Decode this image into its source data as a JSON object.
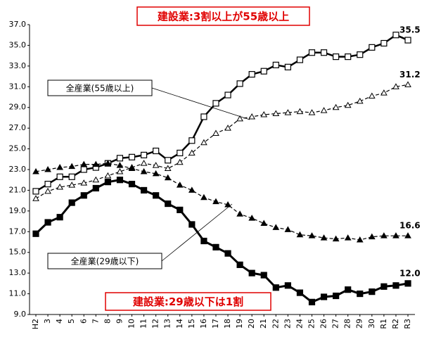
{
  "chart_data": {
    "type": "line",
    "categories": [
      "H2",
      "3",
      "4",
      "5",
      "6",
      "7",
      "8",
      "9",
      "10",
      "11",
      "12",
      "13",
      "14",
      "15",
      "16",
      "17",
      "18",
      "19",
      "20",
      "21",
      "22",
      "23",
      "24",
      "25",
      "26",
      "27",
      "28",
      "29",
      "30",
      "R1",
      "R2",
      "R3"
    ],
    "ylim": [
      9,
      37
    ],
    "yticks": [
      {
        "value": 9,
        "label": "9.0"
      },
      {
        "value": 11,
        "label": "11.0"
      },
      {
        "value": 13,
        "label": "13.0"
      },
      {
        "value": 15,
        "label": "15.0"
      },
      {
        "value": 17,
        "label": "17.0"
      },
      {
        "value": 19,
        "label": "19.0"
      },
      {
        "value": 21,
        "label": "21.0"
      },
      {
        "value": 23,
        "label": "23.0"
      },
      {
        "value": 25,
        "label": "25.0"
      },
      {
        "value": 27,
        "label": "27.0"
      },
      {
        "value": 29,
        "label": "29.0"
      },
      {
        "value": 31,
        "label": "31.0"
      },
      {
        "value": 33,
        "label": "33.0"
      },
      {
        "value": 35,
        "label": "35.0"
      },
      {
        "value": 37,
        "label": "37.0"
      }
    ],
    "grid": false,
    "series": [
      {
        "color": "#000000",
        "marker": "square-open",
        "dash": false,
        "width": 2.5,
        "values": [
          20.9,
          21.6,
          22.3,
          22.3,
          23.0,
          23.2,
          23.6,
          24.1,
          24.2,
          24.4,
          24.8,
          23.9,
          24.6,
          25.8,
          28.1,
          29.4,
          30.2,
          31.3,
          32.2,
          32.5,
          33.1,
          32.9,
          33.6,
          34.3,
          34.3,
          33.9,
          33.9,
          34.1,
          34.8,
          35.2,
          36.0,
          35.5
        ],
        "value_labels": [
          null,
          null,
          null,
          null,
          null,
          null,
          null,
          null,
          null,
          null,
          null,
          null,
          null,
          null,
          null,
          null,
          null,
          null,
          null,
          null,
          null,
          null,
          null,
          null,
          null,
          null,
          null,
          null,
          null,
          null,
          null,
          "35.5"
        ]
      },
      {
        "name": "全産業(55歳以上)",
        "color": "#000000",
        "marker": "triangle-open",
        "dash": true,
        "width": 1.2,
        "values": [
          20.2,
          20.9,
          21.3,
          21.5,
          21.7,
          22.0,
          22.4,
          22.8,
          23.2,
          23.6,
          23.4,
          23.1,
          23.7,
          24.6,
          25.6,
          26.5,
          27.0,
          27.9,
          28.1,
          28.3,
          28.4,
          28.5,
          28.6,
          28.5,
          28.7,
          29.0,
          29.2,
          29.6,
          30.1,
          30.4,
          31.0,
          31.2
        ],
        "value_labels": [
          null,
          null,
          null,
          null,
          null,
          null,
          null,
          null,
          null,
          null,
          null,
          null,
          null,
          null,
          null,
          null,
          null,
          null,
          null,
          null,
          null,
          null,
          null,
          null,
          null,
          null,
          null,
          null,
          null,
          null,
          null,
          "31.2"
        ]
      },
      {
        "name": "全産業(29歳以下)",
        "color": "#000000",
        "marker": "triangle-filled",
        "dash": true,
        "width": 1.2,
        "values": [
          22.8,
          23.0,
          23.2,
          23.3,
          23.5,
          23.5,
          23.6,
          23.4,
          23.1,
          22.8,
          22.6,
          22.2,
          21.5,
          21.0,
          20.3,
          19.9,
          19.6,
          18.7,
          18.3,
          17.8,
          17.4,
          17.2,
          16.7,
          16.6,
          16.4,
          16.3,
          16.4,
          16.2,
          16.5,
          16.6,
          16.6,
          16.6
        ],
        "value_labels": [
          null,
          null,
          null,
          null,
          null,
          null,
          null,
          null,
          null,
          null,
          null,
          null,
          null,
          null,
          null,
          null,
          null,
          null,
          null,
          null,
          null,
          null,
          null,
          null,
          null,
          null,
          null,
          null,
          null,
          null,
          null,
          "16.6"
        ]
      },
      {
        "color": "#000000",
        "marker": "square-filled",
        "dash": false,
        "width": 3,
        "values": [
          16.8,
          17.9,
          18.4,
          19.8,
          20.5,
          21.2,
          21.8,
          22.0,
          21.6,
          21.0,
          20.5,
          19.7,
          19.1,
          17.7,
          16.1,
          15.5,
          14.9,
          13.8,
          13.0,
          12.8,
          11.6,
          11.8,
          11.1,
          10.2,
          10.7,
          10.8,
          11.4,
          11.0,
          11.2,
          11.7,
          11.8,
          12.0
        ],
        "value_labels": [
          null,
          null,
          null,
          null,
          null,
          null,
          null,
          null,
          null,
          null,
          null,
          null,
          null,
          null,
          null,
          null,
          null,
          null,
          null,
          null,
          null,
          null,
          null,
          null,
          null,
          null,
          null,
          null,
          null,
          null,
          null,
          "12.0"
        ]
      }
    ],
    "annotations": [
      "建設業:3割以上が55歳以上",
      "建設業:29歳以下は1割"
    ]
  }
}
